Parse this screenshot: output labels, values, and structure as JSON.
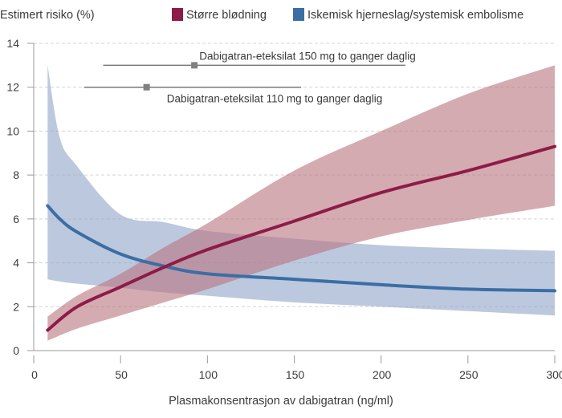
{
  "chart_data": {
    "type": "line",
    "ylabel": "Estimert risiko (%)",
    "xlabel": "Plasmakonsentrasjon av dabigatran (ng/ml)",
    "xlim": [
      0,
      300
    ],
    "ylim": [
      0,
      14
    ],
    "xticks": [
      0,
      50,
      100,
      150,
      200,
      250,
      300
    ],
    "yticks": [
      0,
      2,
      4,
      6,
      8,
      10,
      12,
      14
    ],
    "grid": "horizontal dashed",
    "legend": "top",
    "colors": {
      "bleeding_line": "#8e1b47",
      "bleeding_band": "#b9737e",
      "stroke_line": "#3b6ea5",
      "stroke_band": "#8fa3c8"
    },
    "series": [
      {
        "name": "Større blødning",
        "x": [
          8,
          25,
          50,
          75,
          100,
          150,
          200,
          250,
          300
        ],
        "y": [
          0.93,
          2.0,
          2.9,
          3.8,
          4.6,
          5.9,
          7.2,
          8.2,
          9.3
        ],
        "lower": [
          0.45,
          1.0,
          1.6,
          2.2,
          2.8,
          4.1,
          5.2,
          5.95,
          6.6
        ],
        "upper": [
          1.55,
          2.5,
          3.5,
          4.7,
          5.8,
          8.2,
          10.0,
          11.7,
          13.0
        ]
      },
      {
        "name": "Iskemisk hjerneslag/systemisk embolisme",
        "x": [
          8,
          15,
          25,
          50,
          75,
          100,
          150,
          200,
          250,
          300
        ],
        "y": [
          6.6,
          6.0,
          5.4,
          4.4,
          3.85,
          3.5,
          3.25,
          3.0,
          2.8,
          2.73
        ],
        "lower": [
          3.25,
          3.15,
          3.05,
          2.86,
          2.65,
          2.5,
          2.2,
          2.0,
          1.8,
          1.6
        ],
        "upper": [
          13.0,
          9.7,
          8.4,
          6.2,
          5.85,
          5.45,
          5.1,
          4.8,
          4.65,
          4.55
        ]
      }
    ],
    "annotations": [
      {
        "label": "Dabigatran-eteksilat 150 mg to ganger daglig",
        "y": 13,
        "range": [
          40,
          214
        ],
        "marker": 92.5
      },
      {
        "label": "Dabigatran-eteksilat 110 mg to ganger daglig",
        "y": 12,
        "range": [
          29,
          154
        ],
        "marker": 65
      }
    ]
  }
}
